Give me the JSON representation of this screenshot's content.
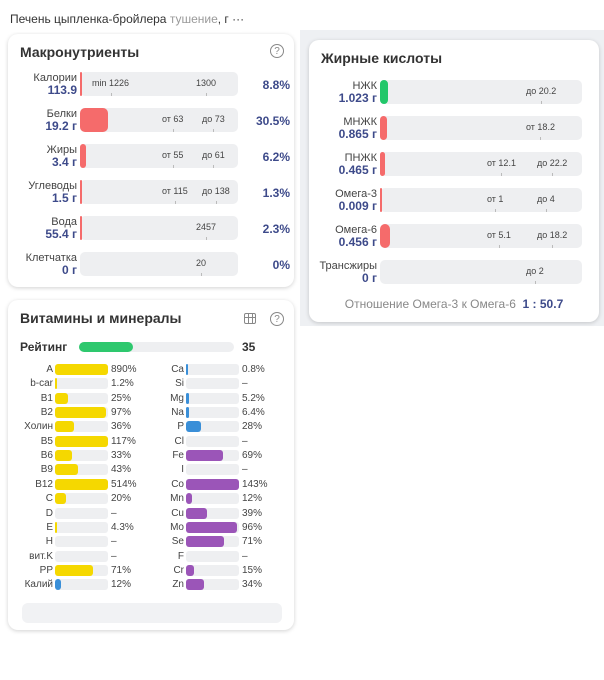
{
  "header": {
    "food": "Печень цыпленка-бройлера",
    "method": "тушение",
    "unit": ", г",
    "more": "···"
  },
  "macro": {
    "title": "Макронутриенты",
    "rows": [
      {
        "name": "Калории",
        "value": "113.9",
        "fill": 0.015,
        "marks": [
          "min 1226",
          "1300"
        ],
        "pct": "8.8%"
      },
      {
        "name": "Белки",
        "value": "19.2 г",
        "fill": 0.18,
        "marks": [
          "от 63",
          "до 73"
        ],
        "pct": "30.5%"
      },
      {
        "name": "Жиры",
        "value": "3.4 г",
        "fill": 0.04,
        "marks": [
          "от 55",
          "до 61"
        ],
        "pct": "6.2%"
      },
      {
        "name": "Углеводы",
        "value": "1.5 г",
        "fill": 0.01,
        "marks": [
          "от 115",
          "до 138"
        ],
        "pct": "1.3%"
      },
      {
        "name": "Вода",
        "value": "55.4 г",
        "fill": 0.015,
        "marks": [
          "2457"
        ],
        "pct": "2.3%"
      },
      {
        "name": "Клетчатка",
        "value": "0 г",
        "fill": 0,
        "marks": [
          "20"
        ],
        "pct": "0%"
      }
    ]
  },
  "fatty": {
    "title": "Жирные кислоты",
    "rows": [
      {
        "name": "НЖК",
        "value": "1.023 г",
        "fill": 0.04,
        "color": "#22c76a",
        "marks": [
          "до 20.2"
        ]
      },
      {
        "name": "МНЖК",
        "value": "0.865 г",
        "fill": 0.035,
        "color": "#f56b6b",
        "marks": [
          "от 18.2"
        ]
      },
      {
        "name": "ПНЖК",
        "value": "0.465 г",
        "fill": 0.025,
        "color": "#f56b6b",
        "marks": [
          "от 12.1",
          "до 22.2"
        ]
      },
      {
        "name": "Омега-3",
        "value": "0.009 г",
        "fill": 0.005,
        "color": "#f56b6b",
        "marks": [
          "от 1",
          "до 4"
        ]
      },
      {
        "name": "Омега-6",
        "value": "0.456 г",
        "fill": 0.05,
        "color": "#f56b6b",
        "marks": [
          "от 5.1",
          "до 18.2"
        ]
      },
      {
        "name": "Трансжиры",
        "value": "0 г",
        "fill": 0,
        "color": "#f56b6b",
        "marks": [
          "до 2"
        ]
      }
    ],
    "ratio_label": "Отношение Омега-3 к Омега-6",
    "ratio_value": "1 : 50.7"
  },
  "vitamins": {
    "title": "Витамины и минералы",
    "rating_label": "Рейтинг",
    "rating": 35,
    "colors": {
      "vitamin": "#f5d800",
      "blue": "#3a8fd8",
      "purple": "#9b55b8",
      "green": "#2ec86e"
    },
    "left": [
      [
        "A",
        890,
        "890%",
        "vitamin"
      ],
      [
        "b-car",
        1.2,
        "1.2%",
        "vitamin"
      ],
      [
        "B1",
        25,
        "25%",
        "vitamin"
      ],
      [
        "B2",
        97,
        "97%",
        "vitamin"
      ],
      [
        "Холин",
        36,
        "36%",
        "vitamin"
      ],
      [
        "B5",
        117,
        "117%",
        "vitamin"
      ],
      [
        "B6",
        33,
        "33%",
        "vitamin"
      ],
      [
        "B9",
        43,
        "43%",
        "vitamin"
      ],
      [
        "B12",
        514,
        "514%",
        "vitamin"
      ],
      [
        "C",
        20,
        "20%",
        "vitamin"
      ],
      [
        "D",
        0,
        "–",
        "vitamin"
      ],
      [
        "E",
        4.3,
        "4.3%",
        "vitamin"
      ],
      [
        "H",
        0,
        "–",
        "vitamin"
      ],
      [
        "вит.K",
        0,
        "–",
        "vitamin"
      ],
      [
        "PP",
        71,
        "71%",
        "vitamin"
      ],
      [
        "Калий",
        12,
        "12%",
        "blue"
      ]
    ],
    "right": [
      [
        "Ca",
        0.8,
        "0.8%",
        "blue"
      ],
      [
        "Si",
        0,
        "–",
        "blue"
      ],
      [
        "Mg",
        5.2,
        "5.2%",
        "blue"
      ],
      [
        "Na",
        6.4,
        "6.4%",
        "blue"
      ],
      [
        "P",
        28,
        "28%",
        "blue"
      ],
      [
        "Cl",
        0,
        "–",
        "blue"
      ],
      [
        "Fe",
        69,
        "69%",
        "purple"
      ],
      [
        "I",
        0,
        "–",
        "purple"
      ],
      [
        "Co",
        143,
        "143%",
        "purple"
      ],
      [
        "Mn",
        12,
        "12%",
        "purple"
      ],
      [
        "Cu",
        39,
        "39%",
        "purple"
      ],
      [
        "Mo",
        96,
        "96%",
        "purple"
      ],
      [
        "Se",
        71,
        "71%",
        "purple"
      ],
      [
        "F",
        0,
        "–",
        "purple"
      ],
      [
        "Cr",
        15,
        "15%",
        "purple"
      ],
      [
        "Zn",
        34,
        "34%",
        "purple"
      ]
    ]
  }
}
